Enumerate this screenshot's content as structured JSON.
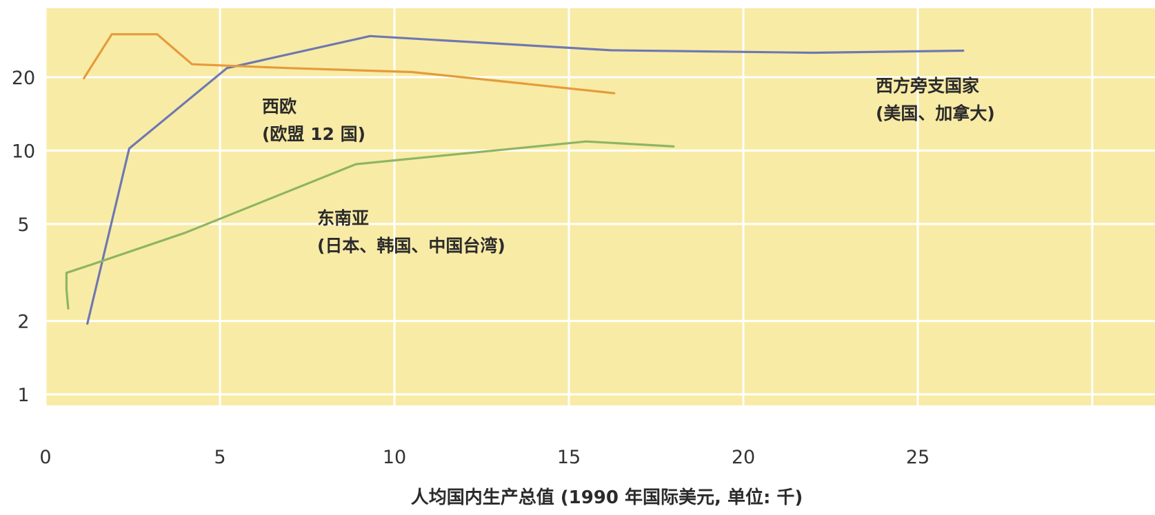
{
  "chart_data": {
    "type": "line",
    "title": "",
    "xlabel": "人均国内生产总值 (1990 年国际美元, 单位: 千)",
    "ylabel": "",
    "xlim": [
      0,
      29
    ],
    "ylim": [
      0.9,
      34
    ],
    "y_scale": "log",
    "x_ticks": [
      "0",
      "5",
      "10",
      "15",
      "20",
      "25"
    ],
    "x_tick_values": [
      0,
      5,
      10,
      15,
      20,
      25
    ],
    "y_ticks": [
      "1",
      "2",
      "5",
      "10",
      "20"
    ],
    "y_tick_values": [
      1,
      2,
      5,
      10,
      20
    ],
    "grid": true,
    "legend": "none",
    "background_color": "#f8eba6",
    "grid_color": "#ffffff",
    "series": [
      {
        "label_lines": [
          "西方旁支国家",
          "(美国、加拿大)"
        ],
        "color": "#6f78b0",
        "x": [
          1.2,
          2.4,
          5.2,
          9.3,
          16.2,
          22.0,
          26.3
        ],
        "y": [
          1.95,
          10.2,
          21.8,
          29.5,
          25.8,
          25.2,
          25.7
        ]
      },
      {
        "label_lines": [
          "西欧",
          "(欧盟 12 国)"
        ],
        "color": "#e59b3a",
        "x": [
          1.1,
          1.9,
          3.2,
          4.2,
          7.0,
          10.5,
          13.0,
          16.3
        ],
        "y": [
          19.8,
          30.0,
          30.0,
          22.6,
          21.8,
          21.0,
          19.3,
          17.2
        ]
      },
      {
        "label_lines": [
          "东南亚",
          "(日本、韩国、中国台湾)"
        ],
        "color": "#8db564",
        "x": [
          0.65,
          0.6,
          0.6,
          1.3,
          4.0,
          8.9,
          15.5,
          18.0
        ],
        "y": [
          2.25,
          2.7,
          3.15,
          3.4,
          4.6,
          8.8,
          10.9,
          10.4
        ]
      }
    ]
  }
}
